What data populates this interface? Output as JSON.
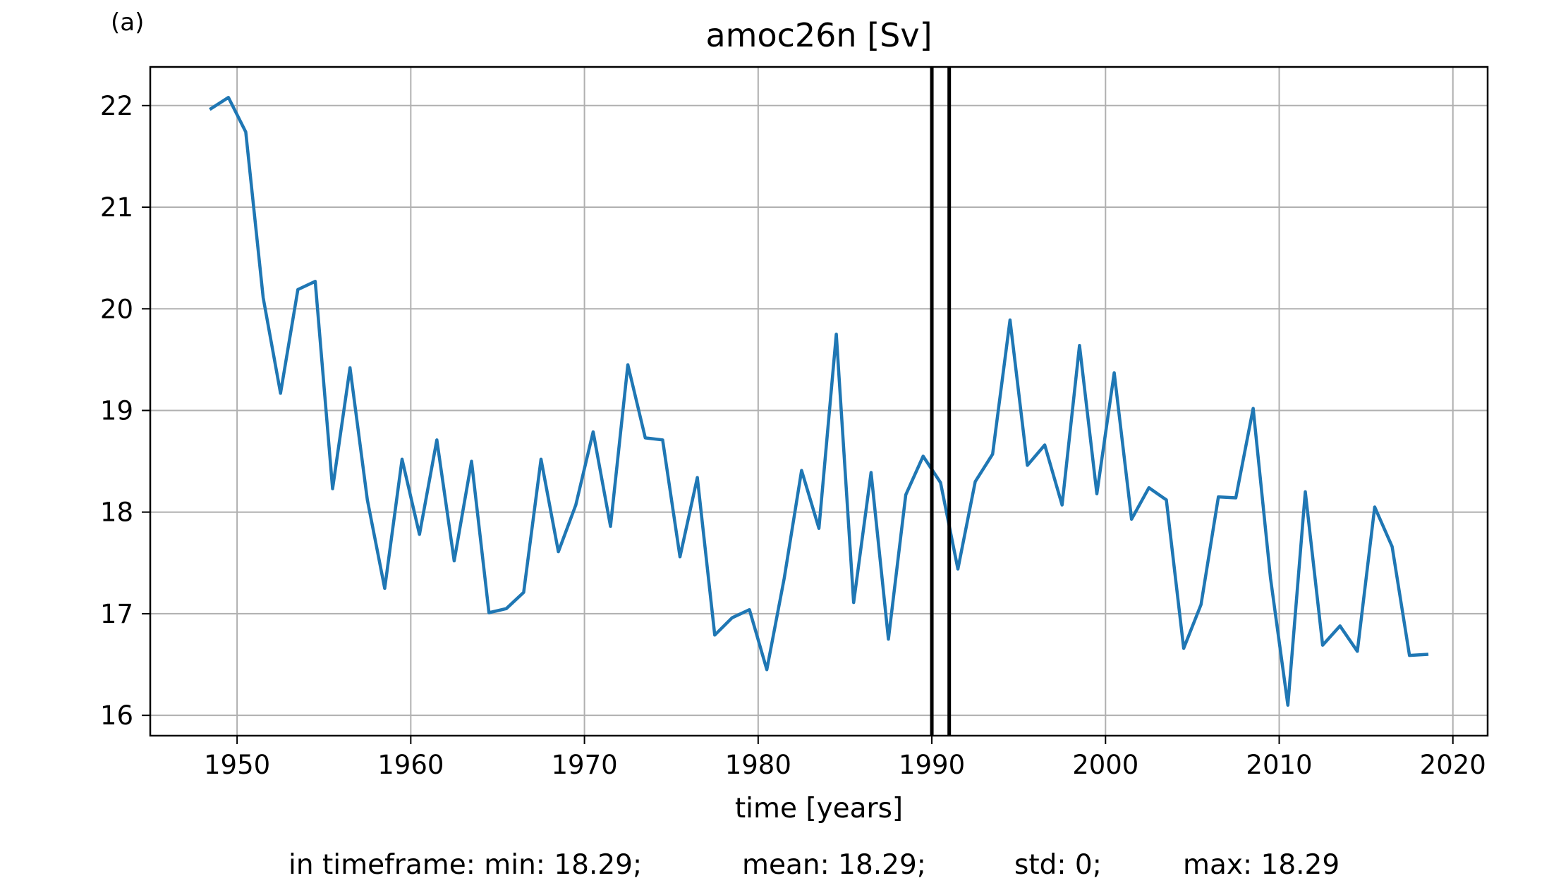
{
  "panel_label": "(a)",
  "stats": {
    "min": "in timeframe: min: 18.29;",
    "mean": "mean: 18.29;",
    "std": "std: 0;",
    "max": "max: 18.29"
  },
  "colors": {
    "series": "#1f77b4",
    "grid": "#b0b0b0",
    "markers": "#000000"
  },
  "chart_data": {
    "type": "line",
    "title": "amoc26n [Sv]",
    "xlabel": "time [years]",
    "ylabel": "",
    "xlim": [
      1945,
      2022
    ],
    "ylim": [
      15.8,
      22.38
    ],
    "xticks": [
      1950,
      1960,
      1970,
      1980,
      1990,
      2000,
      2010,
      2020
    ],
    "yticks": [
      16,
      17,
      18,
      19,
      20,
      21,
      22
    ],
    "grid": true,
    "vlines": [
      1990.0,
      1991.0
    ],
    "series": [
      {
        "x": [
          1948.5,
          1949.5,
          1950.5,
          1951.5,
          1952.5,
          1953.5,
          1954.5,
          1955.5,
          1956.5,
          1957.5,
          1958.5,
          1959.5,
          1960.5,
          1961.5,
          1962.5,
          1963.5,
          1964.5,
          1965.5,
          1966.5,
          1967.5,
          1968.5,
          1969.5,
          1970.5,
          1971.5,
          1972.5,
          1973.5,
          1974.5,
          1975.5,
          1976.5,
          1977.5,
          1978.5,
          1979.5,
          1980.5,
          1981.5,
          1982.5,
          1983.5,
          1984.5,
          1985.5,
          1986.5,
          1987.5,
          1988.5,
          1989.5,
          1990.5,
          1991.5,
          1992.5,
          1993.5,
          1994.5,
          1995.5,
          1996.5,
          1997.5,
          1998.5,
          1999.5,
          2000.5,
          2001.5,
          2002.5,
          2003.5,
          2004.5,
          2005.5,
          2006.5,
          2007.5,
          2008.5,
          2009.5,
          2010.5,
          2011.5,
          2012.5,
          2013.5,
          2014.5,
          2015.5,
          2016.5,
          2017.5,
          2018.5
        ],
        "y": [
          21.97,
          22.08,
          21.74,
          20.11,
          19.17,
          20.19,
          20.27,
          18.23,
          19.42,
          18.12,
          17.25,
          18.52,
          17.78,
          18.71,
          17.52,
          18.5,
          17.01,
          17.05,
          17.21,
          18.52,
          17.61,
          18.07,
          18.79,
          17.86,
          19.45,
          18.73,
          18.71,
          17.56,
          18.34,
          16.79,
          16.96,
          17.04,
          16.45,
          17.35,
          18.41,
          17.84,
          19.75,
          17.11,
          18.39,
          16.75,
          18.17,
          18.55,
          18.29,
          17.44,
          18.3,
          18.57,
          19.89,
          18.46,
          18.66,
          18.07,
          19.64,
          18.18,
          19.37,
          17.93,
          18.24,
          18.12,
          16.66,
          17.09,
          18.15,
          18.14,
          19.02,
          17.35,
          16.1,
          18.2,
          16.69,
          16.88,
          16.63,
          18.05,
          17.66,
          16.59,
          16.6
        ]
      }
    ]
  }
}
